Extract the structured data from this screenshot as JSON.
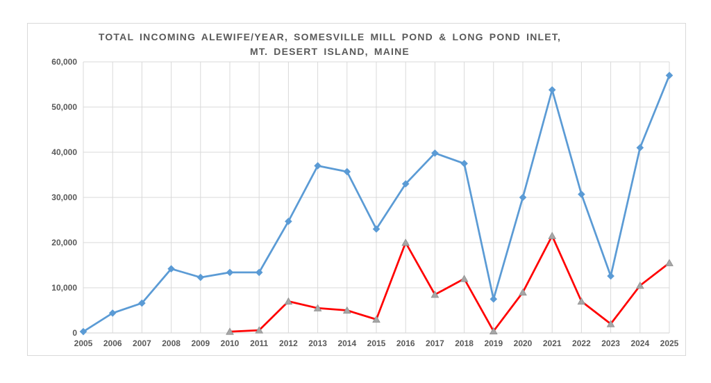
{
  "chart_data": {
    "type": "line",
    "title_line1": "TOTAL INCOMING ALEWIFE/YEAR, SOMESVILLE MILL POND & LONG POND INLET,",
    "title_line2": "MT. DESERT ISLAND, MAINE",
    "categories": [
      "2005",
      "2006",
      "2007",
      "2008",
      "2009",
      "2010",
      "2011",
      "2012",
      "2013",
      "2014",
      "2015",
      "2016",
      "2017",
      "2018",
      "2019",
      "2020",
      "2021",
      "2022",
      "2023",
      "2024",
      "2025"
    ],
    "series": [
      {
        "id": "blue-series",
        "line_color": "#5b9bd5",
        "marker": "diamond",
        "marker_color": "#5b9bd5",
        "values": [
          300,
          4400,
          6600,
          14200,
          12300,
          13400,
          13400,
          24700,
          37000,
          35700,
          23000,
          33000,
          39800,
          37500,
          7500,
          30000,
          53800,
          30700,
          12600,
          41000,
          57000
        ]
      },
      {
        "id": "red-series",
        "line_color": "#ff0000",
        "marker": "triangle",
        "marker_color": "#a6a6a6",
        "values": [
          null,
          null,
          null,
          null,
          null,
          300,
          600,
          7000,
          5500,
          5000,
          3000,
          20000,
          8500,
          12000,
          400,
          9000,
          21500,
          7000,
          2000,
          10500,
          15500
        ]
      }
    ],
    "ylim": [
      0,
      60000
    ],
    "ytick_labels": [
      "0",
      "10,000",
      "20,000",
      "30,000",
      "40,000",
      "50,000",
      "60,000"
    ],
    "grid": true,
    "legend_position": "none",
    "axis_text_color": "#595959",
    "gridline_color": "#d9d9d9",
    "plot_border_color": "#d9d9d9"
  }
}
